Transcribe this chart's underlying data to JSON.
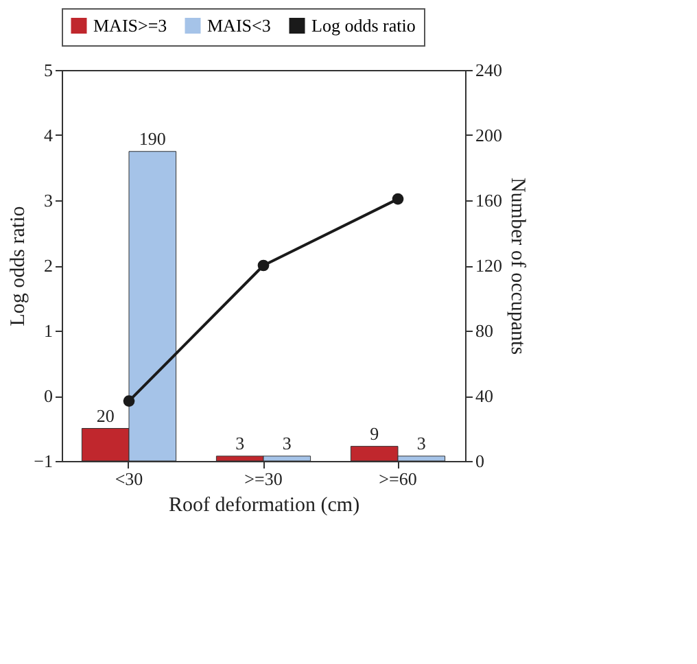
{
  "chart_data": {
    "type": "bar",
    "categories": [
      "<30",
      ">=30",
      ">=60"
    ],
    "xlabel": "Roof deformation (cm)",
    "ylabel": "Log odds ratio",
    "y2label": "Number of occupants",
    "series": [
      {
        "name": "MAIS>=3",
        "axis": "y2",
        "color": "#c0272d",
        "values": [
          20,
          3,
          9
        ],
        "value_labels": [
          "20",
          "3",
          "9"
        ]
      },
      {
        "name": "MAIS<3",
        "axis": "y2",
        "color": "#a5c3e8",
        "values": [
          190,
          3,
          3
        ],
        "value_labels": [
          "190",
          "3",
          "3"
        ]
      },
      {
        "name": "Log odds ratio",
        "type": "line",
        "axis": "y",
        "color": "#1a1a1a",
        "values": [
          -0.08,
          2.0,
          3.02
        ],
        "marker": "circle",
        "line_style": "solid"
      }
    ],
    "ylim": [
      -1,
      5
    ],
    "yticks": [
      -1,
      0,
      1,
      2,
      3,
      4,
      5
    ],
    "y2lim": [
      0,
      240
    ],
    "y2ticks": [
      0,
      40,
      80,
      120,
      160,
      200,
      240
    ],
    "legend": "top",
    "grid": false
  }
}
